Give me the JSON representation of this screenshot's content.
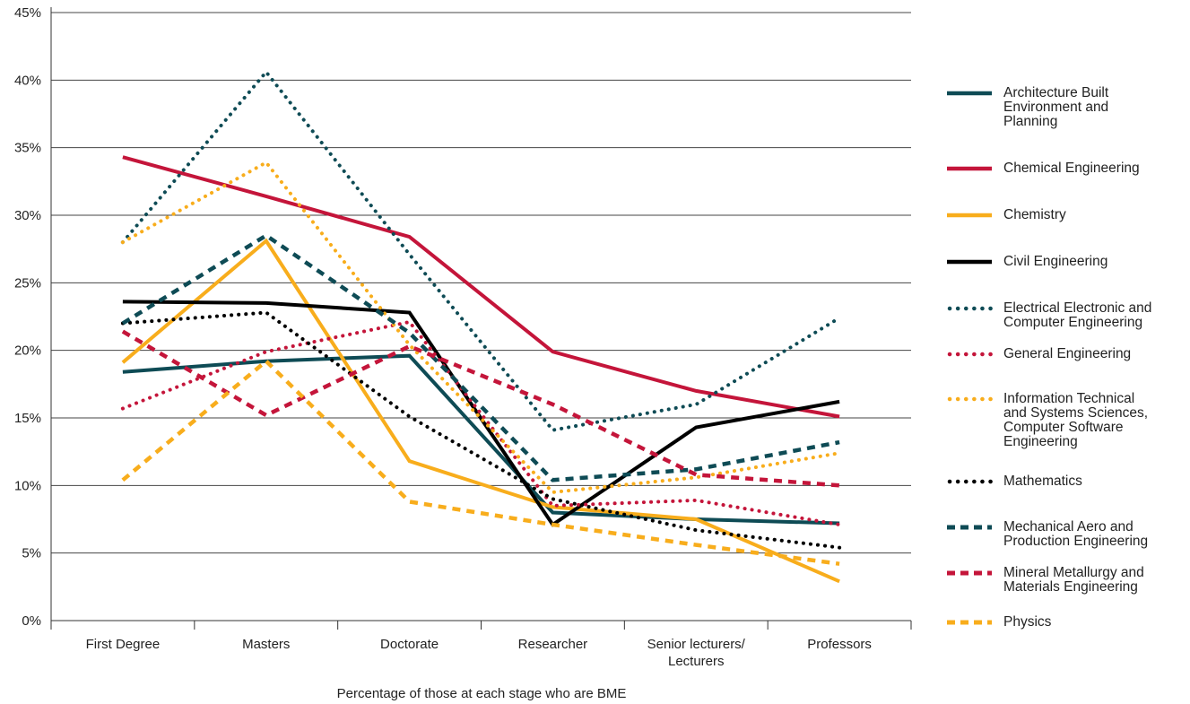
{
  "chart_data": {
    "type": "line",
    "title": "",
    "xlabel": "Percentage of those at each stage who are BME",
    "ylabel": "",
    "categories": [
      "First Degree",
      "Masters",
      "Doctorate",
      "Researcher",
      "Senior lecturers/\nLecturers",
      "Professors"
    ],
    "ylim": [
      0,
      45
    ],
    "yticks": [
      "0%",
      "5%",
      "10%",
      "15%",
      "20%",
      "25%",
      "30%",
      "35%",
      "40%",
      "45%"
    ],
    "grid": true,
    "legend_position": "right",
    "series": [
      {
        "name": "Architecture Built\nEnvironment and\nPlanning",
        "color": "#0e4b55",
        "style": "solid",
        "values": [
          18.4,
          19.2,
          19.6,
          8.0,
          7.5,
          7.2
        ]
      },
      {
        "name": "Chemical Engineering",
        "color": "#c4153a",
        "style": "solid",
        "values": [
          34.3,
          31.4,
          28.4,
          19.9,
          17.0,
          15.1
        ]
      },
      {
        "name": "Chemistry",
        "color": "#f8ad1c",
        "style": "solid",
        "values": [
          19.1,
          28.1,
          11.8,
          8.4,
          7.5,
          2.9
        ]
      },
      {
        "name": "Civil Engineering",
        "color": "#000000",
        "style": "solid",
        "values": [
          23.6,
          23.5,
          22.8,
          7.1,
          14.3,
          16.2
        ]
      },
      {
        "name": "Electrical Electronic and\nComputer Engineering",
        "color": "#0e4b55",
        "style": "dotted",
        "values": [
          28.0,
          40.6,
          27.1,
          14.1,
          16.0,
          22.4
        ]
      },
      {
        "name": "General Engineering",
        "color": "#c4153a",
        "style": "dotted",
        "values": [
          15.7,
          19.9,
          22.1,
          8.5,
          8.9,
          7.1
        ]
      },
      {
        "name": "Information Technical\nand Systems Sciences,\nComputer Software\nEngineering",
        "color": "#f8ad1c",
        "style": "dotted",
        "values": [
          28.0,
          33.9,
          20.4,
          9.5,
          10.6,
          12.4
        ]
      },
      {
        "name": "Mathematics",
        "color": "#000000",
        "style": "dotted",
        "values": [
          22.0,
          22.8,
          15.1,
          9.0,
          6.7,
          5.4
        ]
      },
      {
        "name": "Mechanical Aero and\nProduction Engineering",
        "color": "#0e4b55",
        "style": "dashed",
        "values": [
          22.0,
          28.5,
          21.3,
          10.4,
          11.2,
          13.2
        ]
      },
      {
        "name": "Mineral Metallurgy and\nMaterials Engineering",
        "color": "#c4153a",
        "style": "dashed",
        "values": [
          21.4,
          15.2,
          20.3,
          16.0,
          10.8,
          10.0
        ]
      },
      {
        "name": "Physics",
        "color": "#f8ad1c",
        "style": "dashed",
        "values": [
          10.4,
          19.2,
          8.8,
          7.1,
          5.6,
          4.2
        ]
      }
    ]
  }
}
